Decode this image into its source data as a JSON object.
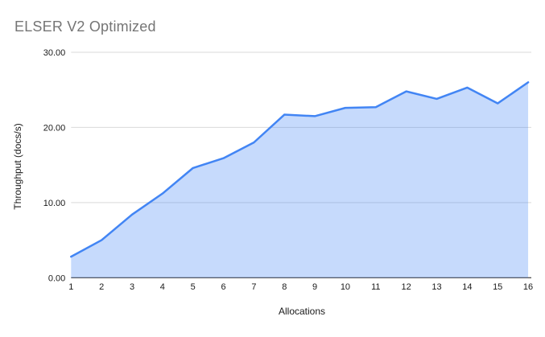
{
  "window": {
    "background": "#ffffff"
  },
  "chart_data": {
    "type": "area",
    "title": "ELSER V2 Optimized",
    "xlabel": "Allocations",
    "ylabel": "Throughput (docs/s)",
    "categories": [
      "1",
      "2",
      "3",
      "4",
      "5",
      "6",
      "7",
      "8",
      "9",
      "10",
      "11",
      "12",
      "13",
      "14",
      "15",
      "16"
    ],
    "values": [
      2.8,
      5.0,
      8.4,
      11.2,
      14.6,
      15.9,
      18.0,
      21.7,
      21.5,
      22.6,
      22.7,
      24.8,
      23.8,
      25.3,
      23.2,
      26.0
    ],
    "ylim": [
      0,
      30
    ],
    "y_ticks": [
      {
        "value": 0,
        "label": "0.00"
      },
      {
        "value": 10,
        "label": "10.00"
      },
      {
        "value": 20,
        "label": "20.00"
      },
      {
        "value": 30,
        "label": "30.00"
      }
    ],
    "grid": "horizontal",
    "legend": "none",
    "colors": {
      "line": "#4285f4",
      "fill": "rgba(66,133,244,0.30)",
      "gridline": "#d9d9d9",
      "axis_line": "#1a1a1a",
      "title_text": "#757575",
      "tick_text": "#1a1a1a",
      "axis_title_text": "#1a1a1a"
    }
  }
}
